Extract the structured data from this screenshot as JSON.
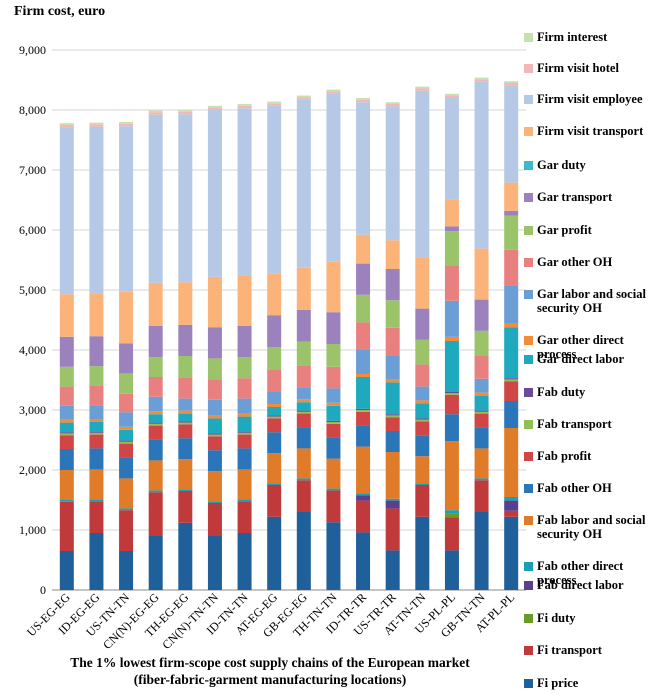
{
  "chart_data": {
    "type": "bar",
    "stacked": true,
    "title": "",
    "ylabel": "Firm cost, euro",
    "xlabel_line1": "The 1% lowest firm-scope cost supply chains of the European market",
    "xlabel_line2": "(fiber-fabric-garment manufacturing locations)",
    "ylim": [
      0,
      9000
    ],
    "yticks": [
      "0",
      "1,000",
      "2,000",
      "3,000",
      "4,000",
      "5,000",
      "6,000",
      "7,000",
      "8,000",
      "9,000"
    ],
    "categories": [
      "US-EG-EG",
      "ID-EG-EG",
      "US-TN-TN",
      "CN(N)-EG-EG",
      "TH-EG-EG",
      "CN(N)-TN-TN",
      "ID-TN-TN",
      "AT-EG-EG",
      "GB-EG-EG",
      "TH-TN-TN",
      "ID-TR-TR",
      "US-TR-TR",
      "AT-TN-TN",
      "US-PL-PL",
      "GB-TN-TN",
      "AT-PL-PL"
    ],
    "grid": true,
    "legend_position": "right",
    "series": [
      {
        "name": "Fi price",
        "color": "#1f5f9a",
        "values": [
          650,
          950,
          650,
          900,
          1120,
          900,
          950,
          1220,
          1300,
          1130,
          960,
          660,
          1220,
          660,
          1300,
          1220
        ]
      },
      {
        "name": "Fi transport",
        "color": "#c0393b",
        "values": [
          820,
          530,
          680,
          730,
          530,
          550,
          530,
          530,
          530,
          530,
          530,
          700,
          530,
          550,
          530,
          100
        ]
      },
      {
        "name": "Fi duty",
        "color": "#6a9a2a",
        "values": [
          0,
          0,
          0,
          0,
          0,
          0,
          0,
          0,
          0,
          0,
          0,
          0,
          0,
          60,
          0,
          0
        ]
      },
      {
        "name": "Fab direct labor",
        "color": "#5b3f8f",
        "values": [
          0,
          0,
          0,
          0,
          0,
          0,
          0,
          0,
          0,
          0,
          90,
          130,
          0,
          0,
          0,
          170
        ]
      },
      {
        "name": "Fab other direct process",
        "color": "#1aa0b5",
        "values": [
          30,
          30,
          30,
          30,
          30,
          30,
          30,
          30,
          30,
          30,
          30,
          30,
          30,
          60,
          30,
          60
        ]
      },
      {
        "name": "Fab labor and social security OH",
        "color": "#e07b2a",
        "values": [
          500,
          500,
          500,
          500,
          500,
          500,
          500,
          500,
          500,
          500,
          780,
          780,
          450,
          1150,
          500,
          1150
        ]
      },
      {
        "name": "Fab other OH",
        "color": "#2a76b8",
        "values": [
          350,
          350,
          350,
          350,
          350,
          350,
          350,
          350,
          350,
          350,
          350,
          350,
          350,
          450,
          350,
          450
        ]
      },
      {
        "name": "Fab profit",
        "color": "#d04545",
        "values": [
          230,
          230,
          230,
          230,
          230,
          230,
          230,
          230,
          230,
          230,
          230,
          230,
          230,
          320,
          230,
          330
        ]
      },
      {
        "name": "Fab transport",
        "color": "#8fbf55",
        "values": [
          30,
          30,
          30,
          30,
          30,
          30,
          30,
          30,
          30,
          30,
          30,
          30,
          30,
          30,
          30,
          30
        ]
      },
      {
        "name": "Fab duty",
        "color": "#6b4a9a",
        "values": [
          20,
          20,
          20,
          20,
          20,
          20,
          20,
          20,
          20,
          20,
          20,
          20,
          20,
          20,
          20,
          20
        ]
      },
      {
        "name": "Gar direct labor",
        "color": "#1fa9bf",
        "values": [
          160,
          160,
          180,
          140,
          130,
          250,
          250,
          140,
          140,
          250,
          530,
          530,
          250,
          850,
          250,
          850
        ]
      },
      {
        "name": "Gar other direct process",
        "color": "#f28c38",
        "values": [
          50,
          50,
          50,
          50,
          50,
          50,
          50,
          50,
          50,
          50,
          50,
          50,
          50,
          70,
          50,
          70
        ]
      },
      {
        "name": "Gar labor and social security OH",
        "color": "#6a9ed4",
        "values": [
          230,
          230,
          240,
          240,
          200,
          260,
          250,
          200,
          200,
          240,
          400,
          400,
          230,
          600,
          230,
          630
        ]
      },
      {
        "name": "Gar  other OH",
        "color": "#e88080",
        "values": [
          320,
          320,
          310,
          330,
          350,
          340,
          340,
          380,
          360,
          360,
          460,
          460,
          370,
          590,
          380,
          590
        ]
      },
      {
        "name": "Gar profit",
        "color": "#9bc46a",
        "values": [
          330,
          330,
          340,
          330,
          360,
          350,
          350,
          370,
          400,
          380,
          460,
          460,
          410,
          570,
          420,
          570
        ]
      },
      {
        "name": "Gar transport",
        "color": "#9b82bd",
        "values": [
          500,
          500,
          500,
          520,
          520,
          520,
          520,
          530,
          530,
          530,
          520,
          520,
          520,
          80,
          520,
          80
        ]
      },
      {
        "name": "Gar duty",
        "color": "#3fb8c9",
        "values": [
          0,
          0,
          0,
          0,
          0,
          0,
          0,
          0,
          0,
          0,
          0,
          0,
          0,
          0,
          0,
          0
        ]
      },
      {
        "name": "Firm visit transport",
        "color": "#fbb37a",
        "values": [
          710,
          710,
          860,
          720,
          710,
          840,
          840,
          700,
          700,
          840,
          480,
          480,
          850,
          450,
          850,
          470
        ]
      },
      {
        "name": "Firm visit employee",
        "color": "#b5c9e6",
        "values": [
          2780,
          2780,
          2760,
          2800,
          2800,
          2780,
          2790,
          2790,
          2800,
          2800,
          2210,
          2230,
          2780,
          1690,
          2780,
          1620
        ]
      },
      {
        "name": "Firm visit hotel",
        "color": "#f2b7b6",
        "values": [
          40,
          40,
          40,
          40,
          40,
          40,
          40,
          40,
          40,
          40,
          40,
          40,
          40,
          40,
          40,
          40
        ]
      },
      {
        "name": "Firm interest",
        "color": "#c7e0b0",
        "values": [
          30,
          30,
          30,
          30,
          30,
          30,
          30,
          30,
          30,
          30,
          30,
          30,
          30,
          30,
          30,
          30
        ]
      }
    ],
    "legend_entries": [
      "Firm interest",
      "Firm visit hotel",
      "Firm visit employee",
      "Firm visit transport",
      "Gar duty",
      "Gar transport",
      "Gar profit",
      "Gar  other OH",
      "Gar labor and social security OH",
      "Gar other direct process",
      "Gar direct labor",
      "Fab duty",
      "Fab transport",
      "Fab profit",
      "Fab other OH",
      "Fab labor and social security OH",
      "Fab other direct process",
      "Fab direct labor",
      "Fi duty",
      "Fi transport",
      "Fi price"
    ]
  }
}
